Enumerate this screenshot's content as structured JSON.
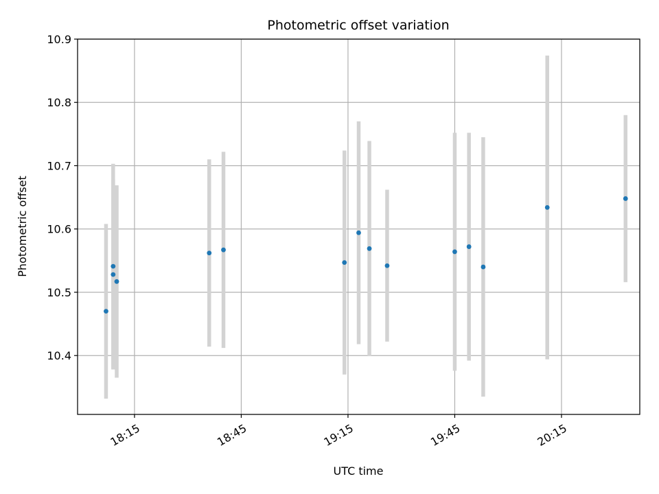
{
  "chart_data": {
    "type": "scatter",
    "title": "Photometric offset variation",
    "xlabel": "UTC time",
    "ylabel": "Photometric offset",
    "x_tick_labels": [
      "18:15",
      "18:45",
      "19:15",
      "19:45",
      "20:15"
    ],
    "y_tick_labels": [
      "10.4",
      "10.5",
      "10.6",
      "10.7",
      "10.8",
      "10.9"
    ],
    "xlim": [
      "17:59",
      "20:37"
    ],
    "ylim": [
      10.307,
      10.9
    ],
    "grid": true,
    "marker_color": "#1f77b4",
    "errorbar_color": "#d3d3d3",
    "points": [
      {
        "x": "18:07",
        "y": 10.47,
        "yerr": 0.138
      },
      {
        "x": "18:09",
        "y": 10.541,
        "yerr": 0.162
      },
      {
        "x": "18:09",
        "y": 10.528,
        "yerr": 0.15
      },
      {
        "x": "18:10",
        "y": 10.517,
        "yerr": 0.152
      },
      {
        "x": "18:36",
        "y": 10.562,
        "yerr": 0.148
      },
      {
        "x": "18:40",
        "y": 10.567,
        "yerr": 0.155
      },
      {
        "x": "19:14",
        "y": 10.547,
        "yerr": 0.177
      },
      {
        "x": "19:18",
        "y": 10.594,
        "yerr": 0.176
      },
      {
        "x": "19:21",
        "y": 10.569,
        "yerr": 0.17
      },
      {
        "x": "19:26",
        "y": 10.542,
        "yerr": 0.12
      },
      {
        "x": "19:45",
        "y": 10.564,
        "yerr": 0.188
      },
      {
        "x": "19:49",
        "y": 10.572,
        "yerr": 0.18
      },
      {
        "x": "19:53",
        "y": 10.54,
        "yerr": 0.205
      },
      {
        "x": "20:11",
        "y": 10.634,
        "yerr": 0.24
      },
      {
        "x": "20:33",
        "y": 10.648,
        "yerr": 0.132
      }
    ]
  }
}
